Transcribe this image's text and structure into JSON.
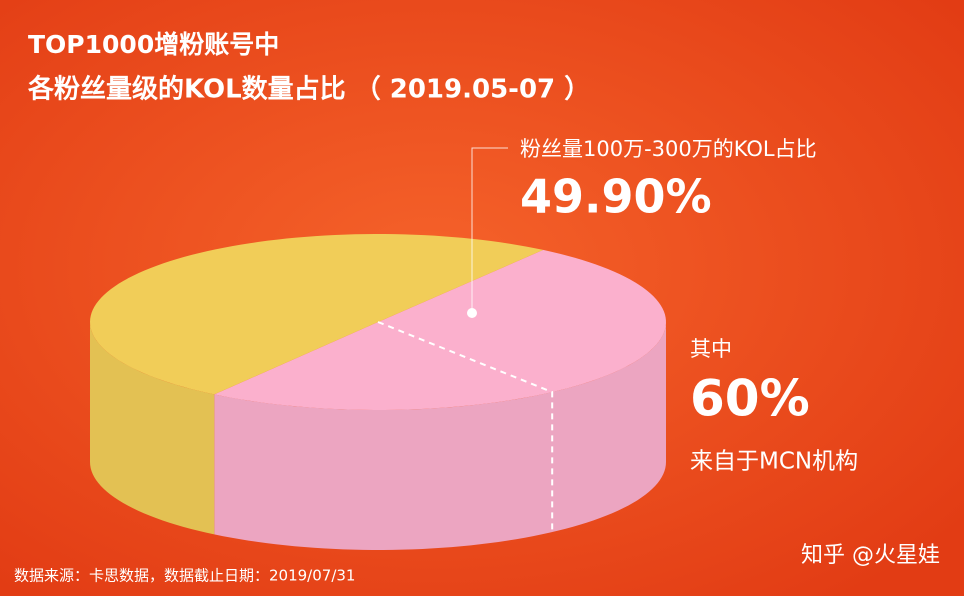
{
  "chart_data": {
    "type": "pie",
    "title": "TOP1000增粉账号中",
    "subtitle": "各粉丝量级的KOL数量占比 （ 2019.05-07 ）",
    "categories": [
      "粉丝量100万-300万的KOL占比",
      null
    ],
    "values": [
      49.9,
      50.1
    ],
    "value_labels": [
      "49.90%",
      null
    ],
    "colors": [
      "#fbb0cd",
      "#f1cd58"
    ],
    "annotation": {
      "intro": "其中",
      "value": 60,
      "label": "60%",
      "note": "来自于MCN机构"
    },
    "source": "数据来源：卡思数据，数据截止日期：2019/07/31",
    "watermark": "知乎 @火星娃"
  }
}
